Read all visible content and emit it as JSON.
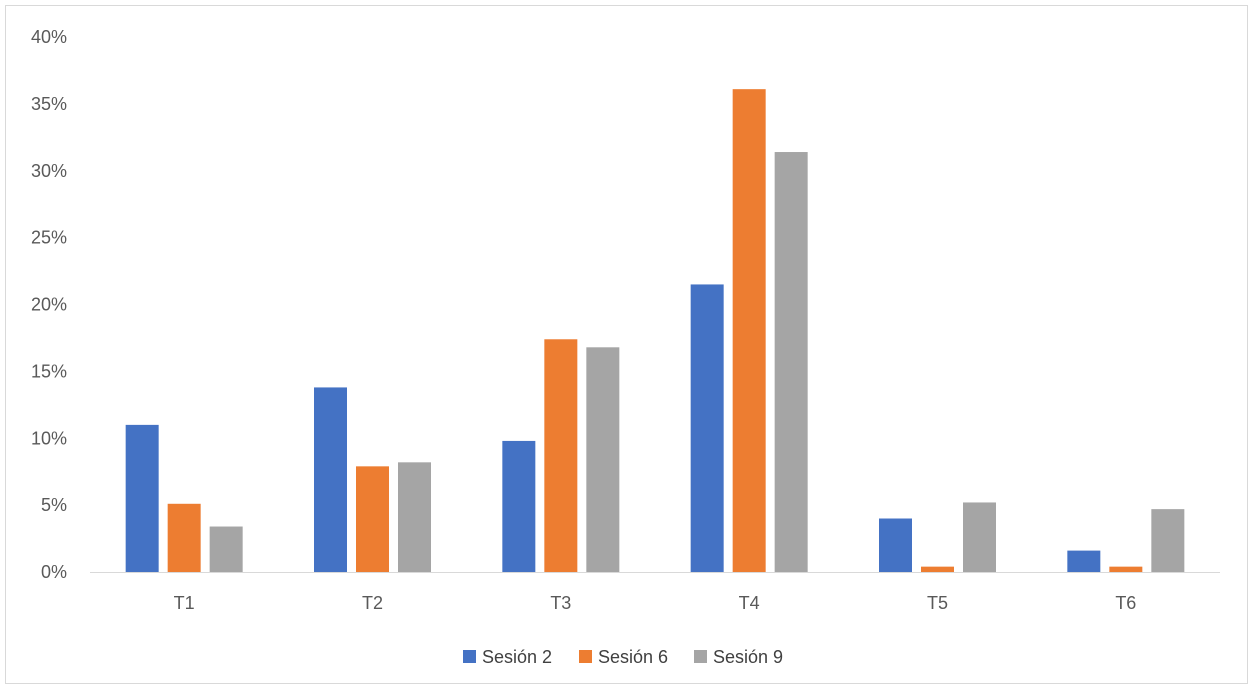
{
  "chart_data": {
    "type": "bar",
    "categories": [
      "T1",
      "T2",
      "T3",
      "T4",
      "T5",
      "T6"
    ],
    "series": [
      {
        "name": "Sesión 2",
        "color": "#4472c4",
        "values": [
          11.0,
          13.8,
          9.8,
          21.5,
          4.0,
          1.6
        ]
      },
      {
        "name": "Sesión 6",
        "color": "#ed7d31",
        "values": [
          5.1,
          7.9,
          17.4,
          36.1,
          0.4,
          0.4
        ]
      },
      {
        "name": "Sesión 9",
        "color": "#a5a5a5",
        "values": [
          3.4,
          8.2,
          16.8,
          31.4,
          5.2,
          4.7
        ]
      }
    ],
    "ylim": [
      0,
      40
    ],
    "yticks": [
      "0%",
      "5%",
      "10%",
      "15%",
      "20%",
      "25%",
      "30%",
      "35%",
      "40%"
    ],
    "ytick_values": [
      0,
      5,
      10,
      15,
      20,
      25,
      30,
      35,
      40
    ],
    "grid": false,
    "legend_position": "bottom",
    "title": "",
    "xlabel": "",
    "ylabel": ""
  }
}
